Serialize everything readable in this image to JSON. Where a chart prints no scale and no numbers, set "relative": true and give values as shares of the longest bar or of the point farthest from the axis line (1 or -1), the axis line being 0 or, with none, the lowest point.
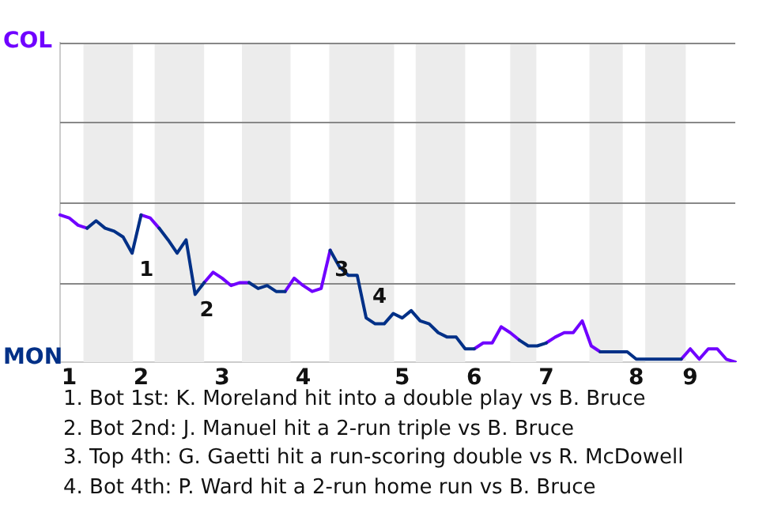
{
  "chart_data": {
    "type": "line",
    "relative": true,
    "categories": [
      null,
      "1",
      null,
      null,
      null,
      null,
      null,
      null,
      null,
      "2",
      null,
      null,
      null,
      null,
      null,
      null,
      null,
      null,
      "3",
      null,
      null,
      null,
      null,
      null,
      null,
      null,
      null,
      "4",
      null,
      null,
      null,
      null,
      null,
      null,
      null,
      null,
      null,
      null,
      "5",
      null,
      null,
      null,
      null,
      null,
      null,
      null,
      "6",
      null,
      null,
      null,
      null,
      null,
      null,
      null,
      "7",
      null,
      null,
      null,
      null,
      null,
      null,
      null,
      null,
      null,
      "8",
      null,
      null,
      null,
      null,
      null,
      "9",
      null,
      null,
      null,
      null,
      null
    ],
    "legend": false,
    "marker": "none",
    "line_style": "solid",
    "ref_lines": [
      {
        "axis": "y",
        "value": 0.54,
        "color": "#888888"
      },
      {
        "axis": "y",
        "value": 1.09,
        "color": "#888888"
      },
      {
        "axis": "y",
        "value": 1.63,
        "color": "#888888"
      },
      {
        "axis": "y",
        "value": 2.17,
        "color": "#888888"
      }
    ],
    "series": [
      {
        "color": "#003087",
        "values": [
          null,
          null,
          null,
          0.91,
          0.96,
          0.91,
          0.89,
          0.85,
          0.74,
          1,
          null,
          0.91,
          0.83,
          0.74,
          0.83,
          0.46,
          0.54,
          null,
          null,
          null,
          null,
          0.54,
          0.5,
          0.52,
          0.48,
          0.48,
          null,
          null,
          null,
          null,
          0.76,
          0.65,
          0.59,
          0.59,
          0.3,
          0.26,
          0.26,
          0.33,
          0.3,
          0.35,
          0.28,
          0.26,
          0.2,
          0.17,
          0.17,
          0.09,
          0.09,
          null,
          null,
          null,
          null,
          0.15,
          0.11,
          0.11,
          0.13,
          null,
          null,
          null,
          null,
          null,
          0.07,
          0.07,
          0.07,
          0.07,
          0.02,
          0.02,
          0.02,
          0.02,
          0.02,
          0.02,
          null,
          null,
          null,
          null,
          null,
          null
        ]
      },
      {
        "color": "#7000ff",
        "values": [
          1,
          0.98,
          0.93,
          0.91,
          null,
          null,
          null,
          null,
          null,
          1,
          0.98,
          0.91,
          null,
          null,
          null,
          null,
          0.54,
          0.61,
          0.57,
          0.52,
          0.54,
          0.54,
          null,
          null,
          null,
          0.48,
          0.57,
          0.52,
          0.48,
          0.5,
          0.76,
          null,
          null,
          null,
          null,
          null,
          null,
          null,
          null,
          null,
          null,
          null,
          null,
          null,
          null,
          null,
          0.09,
          0.13,
          0.13,
          0.24,
          0.2,
          0.15,
          null,
          null,
          0.13,
          0.17,
          0.2,
          0.2,
          0.28,
          0.11,
          0.07,
          null,
          null,
          null,
          null,
          null,
          null,
          null,
          null,
          0.02,
          0.09,
          0.02,
          0.09,
          0.09,
          0.02,
          0
        ]
      }
    ],
    "annotations": [
      "COL",
      "MON",
      "1",
      "2",
      "3",
      "4",
      "1. Bot 1st: K. Moreland hit into a double play vs B. Bruce",
      "2. Bot 2nd: J. Manuel hit a 2-run triple vs B. Bruce",
      "3. Top 4th: G. Gaetti hit a run-scoring double vs R. McDowell",
      "4. Bot 4th: P. Ward hit a 2-run home run vs B. Bruce"
    ]
  }
}
